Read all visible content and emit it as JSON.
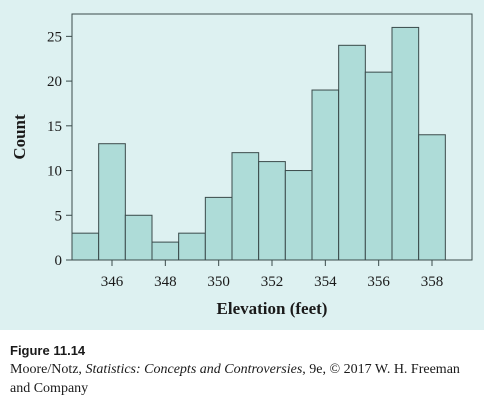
{
  "chart_data": {
    "type": "bar",
    "subtype": "histogram",
    "xlabel": "Elevation (feet)",
    "ylabel": "Count",
    "bin_width": 1,
    "bin_centers": [
      345,
      346,
      347,
      348,
      349,
      350,
      351,
      352,
      353,
      354,
      355,
      356,
      357,
      358
    ],
    "values": [
      3,
      13,
      5,
      2,
      3,
      7,
      12,
      11,
      10,
      19,
      24,
      21,
      26,
      14
    ],
    "xticks": [
      "346",
      "348",
      "350",
      "352",
      "354",
      "356",
      "358"
    ],
    "yticks": [
      "0",
      "5",
      "10",
      "15",
      "20",
      "25"
    ],
    "ylim": [
      0,
      27.5
    ],
    "xlim": [
      344.5,
      359.5
    ],
    "grid": false,
    "bar_color": "#aedcd8",
    "bar_edge_color": "#3a4a4a",
    "panel_color": "#ddf1f1"
  },
  "caption": {
    "figure_label": "Figure 11.14",
    "authors": "Moore/Notz, ",
    "book_title": "Statistics: Concepts and Controversies",
    "rest": ", 9e, © 2017 W. H. Freeman and Company"
  }
}
